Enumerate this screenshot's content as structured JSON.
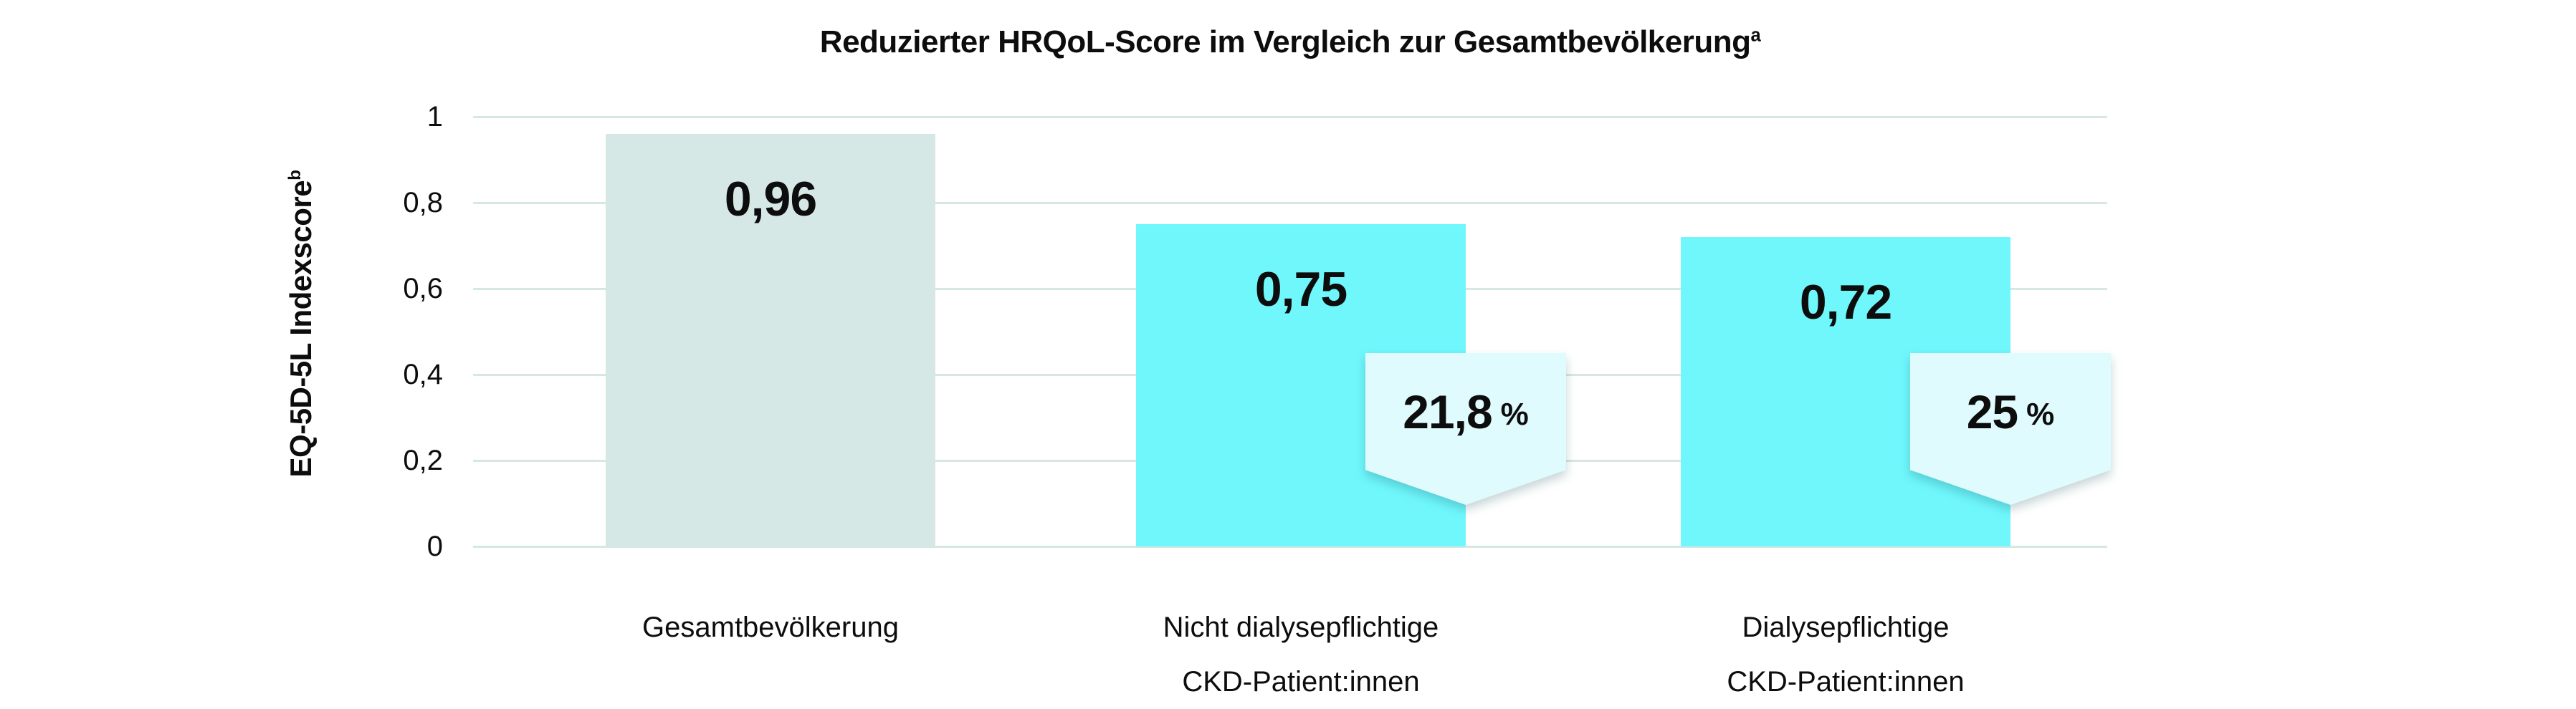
{
  "title": {
    "text": "Reduzierter HRQoL-Score im Vergleich zur Gesamtbevölkerung",
    "sup": "a"
  },
  "y_axis": {
    "label": "EQ-5D-5L Indexscore",
    "sup": "b"
  },
  "colors": {
    "gridline": "#d7e7e4",
    "reference_bar": "#d6e8e5",
    "ckd_bar": "#6ff7fc",
    "badge_fill": "#e0fbfd",
    "text": "#0d0d0d"
  },
  "chart_data": {
    "type": "bar",
    "title": "Reduzierter HRQoL-Score im Vergleich zur Gesamtbevölkerunga",
    "ylabel": "EQ-5D-5L Indexscoreb",
    "xlabel": "",
    "ylim": [
      0,
      1
    ],
    "yticks": [
      1,
      0.8,
      0.6,
      0.4,
      0.2,
      0
    ],
    "ytick_labels": [
      "1",
      "0,8",
      "0,6",
      "0,4",
      "0,2",
      "0"
    ],
    "grid": true,
    "legend": false,
    "categories": [
      "Gesamtbevölkerung",
      "Nicht dialysepflichtige CKD-Patient:innen",
      "Dialysepflichtige CKD-Patient:innen"
    ],
    "category_lines": [
      [
        "Gesamtbevölkerung"
      ],
      [
        "Nicht dialysepflichtige",
        "CKD-Patient:innen"
      ],
      [
        "Dialysepflichtige",
        "CKD-Patient:innen"
      ]
    ],
    "values": [
      0.96,
      0.75,
      0.72
    ],
    "value_labels": [
      "0,96",
      "0,75",
      "0,72"
    ],
    "bar_color_keys": [
      "reference_bar",
      "ckd_bar",
      "ckd_bar"
    ],
    "reduction_badges": [
      null,
      {
        "number": "21,8",
        "unit": "%"
      },
      {
        "number": "25",
        "unit": "%"
      }
    ]
  }
}
